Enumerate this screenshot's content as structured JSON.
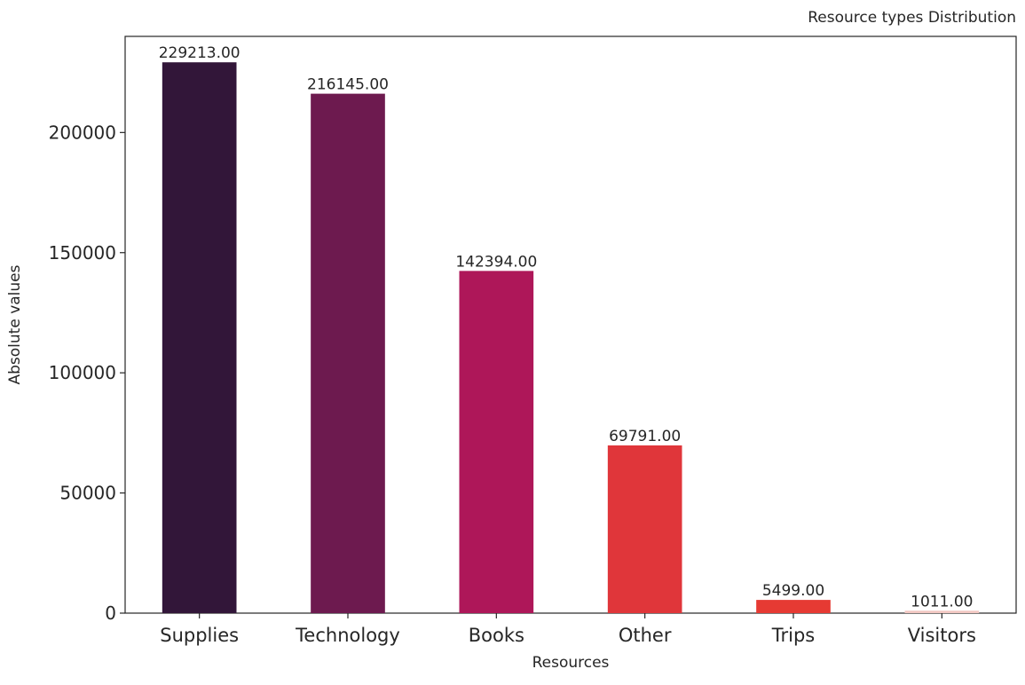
{
  "chart_data": {
    "type": "bar",
    "title": "Resource types Distribution",
    "xlabel": "Resources",
    "ylabel": "Absolute values",
    "categories": [
      "Supplies",
      "Technology",
      "Books",
      "Other",
      "Trips",
      "Visitors"
    ],
    "values": [
      229213,
      216145,
      142394,
      69791,
      5499,
      1011
    ],
    "data_labels": [
      "229213.00",
      "216145.00",
      "142394.00",
      "69791.00",
      "5499.00",
      "1011.00"
    ],
    "colors": [
      "#321639",
      "#6d1a4f",
      "#ae1759",
      "#e0363a",
      "#e63a33",
      "#f2c8c3"
    ],
    "ylim": [
      0,
      240000
    ],
    "yticks": [
      0,
      50000,
      100000,
      150000,
      200000
    ],
    "ytick_labels": [
      "0",
      "50000",
      "100000",
      "150000",
      "200000"
    ],
    "grid": false,
    "legend": "none"
  }
}
